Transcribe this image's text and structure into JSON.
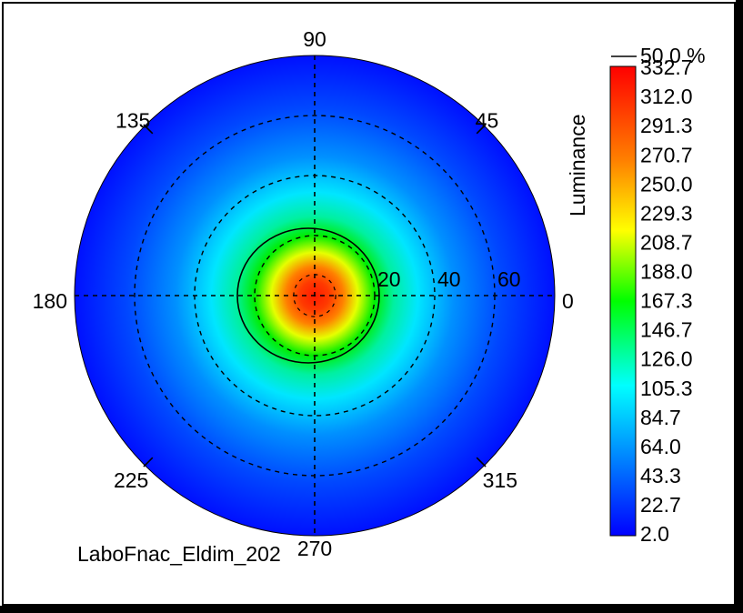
{
  "chart_data": {
    "type": "heatmap",
    "subtype": "polar luminance map (conoscopic)",
    "caption": "LaboFnac_Eldim_202",
    "colorbar": {
      "title": "Luminance",
      "ticks": [
        "332.7",
        "312.0",
        "291.3",
        "270.7",
        "250.0",
        "229.3",
        "208.7",
        "188.0",
        "167.3",
        "146.7",
        "126.0",
        "105.3",
        "84.7",
        "64.0",
        "43.3",
        "22.7",
        "2.0"
      ],
      "min": 2.0,
      "max": 332.7,
      "contour_legend": "50.0 %",
      "colormap": [
        "#0000ff",
        "#0090ff",
        "#00ffff",
        "#00ff00",
        "#ffff00",
        "#ff8000",
        "#ff0000"
      ]
    },
    "angular_axis": {
      "labels": [
        {
          "angle": 0,
          "text": "0"
        },
        {
          "angle": 45,
          "text": "45"
        },
        {
          "angle": 90,
          "text": "90"
        },
        {
          "angle": 135,
          "text": "135"
        },
        {
          "angle": 180,
          "text": "180"
        },
        {
          "angle": 225,
          "text": "225"
        },
        {
          "angle": 270,
          "text": "270"
        },
        {
          "angle": 315,
          "text": "315"
        }
      ]
    },
    "radial_axis": {
      "max": 80,
      "rings": [
        20,
        40,
        60
      ],
      "labels": [
        "20",
        "40",
        "60"
      ]
    },
    "field": {
      "peak": 332.7,
      "peak_position": [
        0,
        0
      ],
      "edge_value": 2.0,
      "contour_50_percent_radius": 15
    },
    "grid": true
  }
}
